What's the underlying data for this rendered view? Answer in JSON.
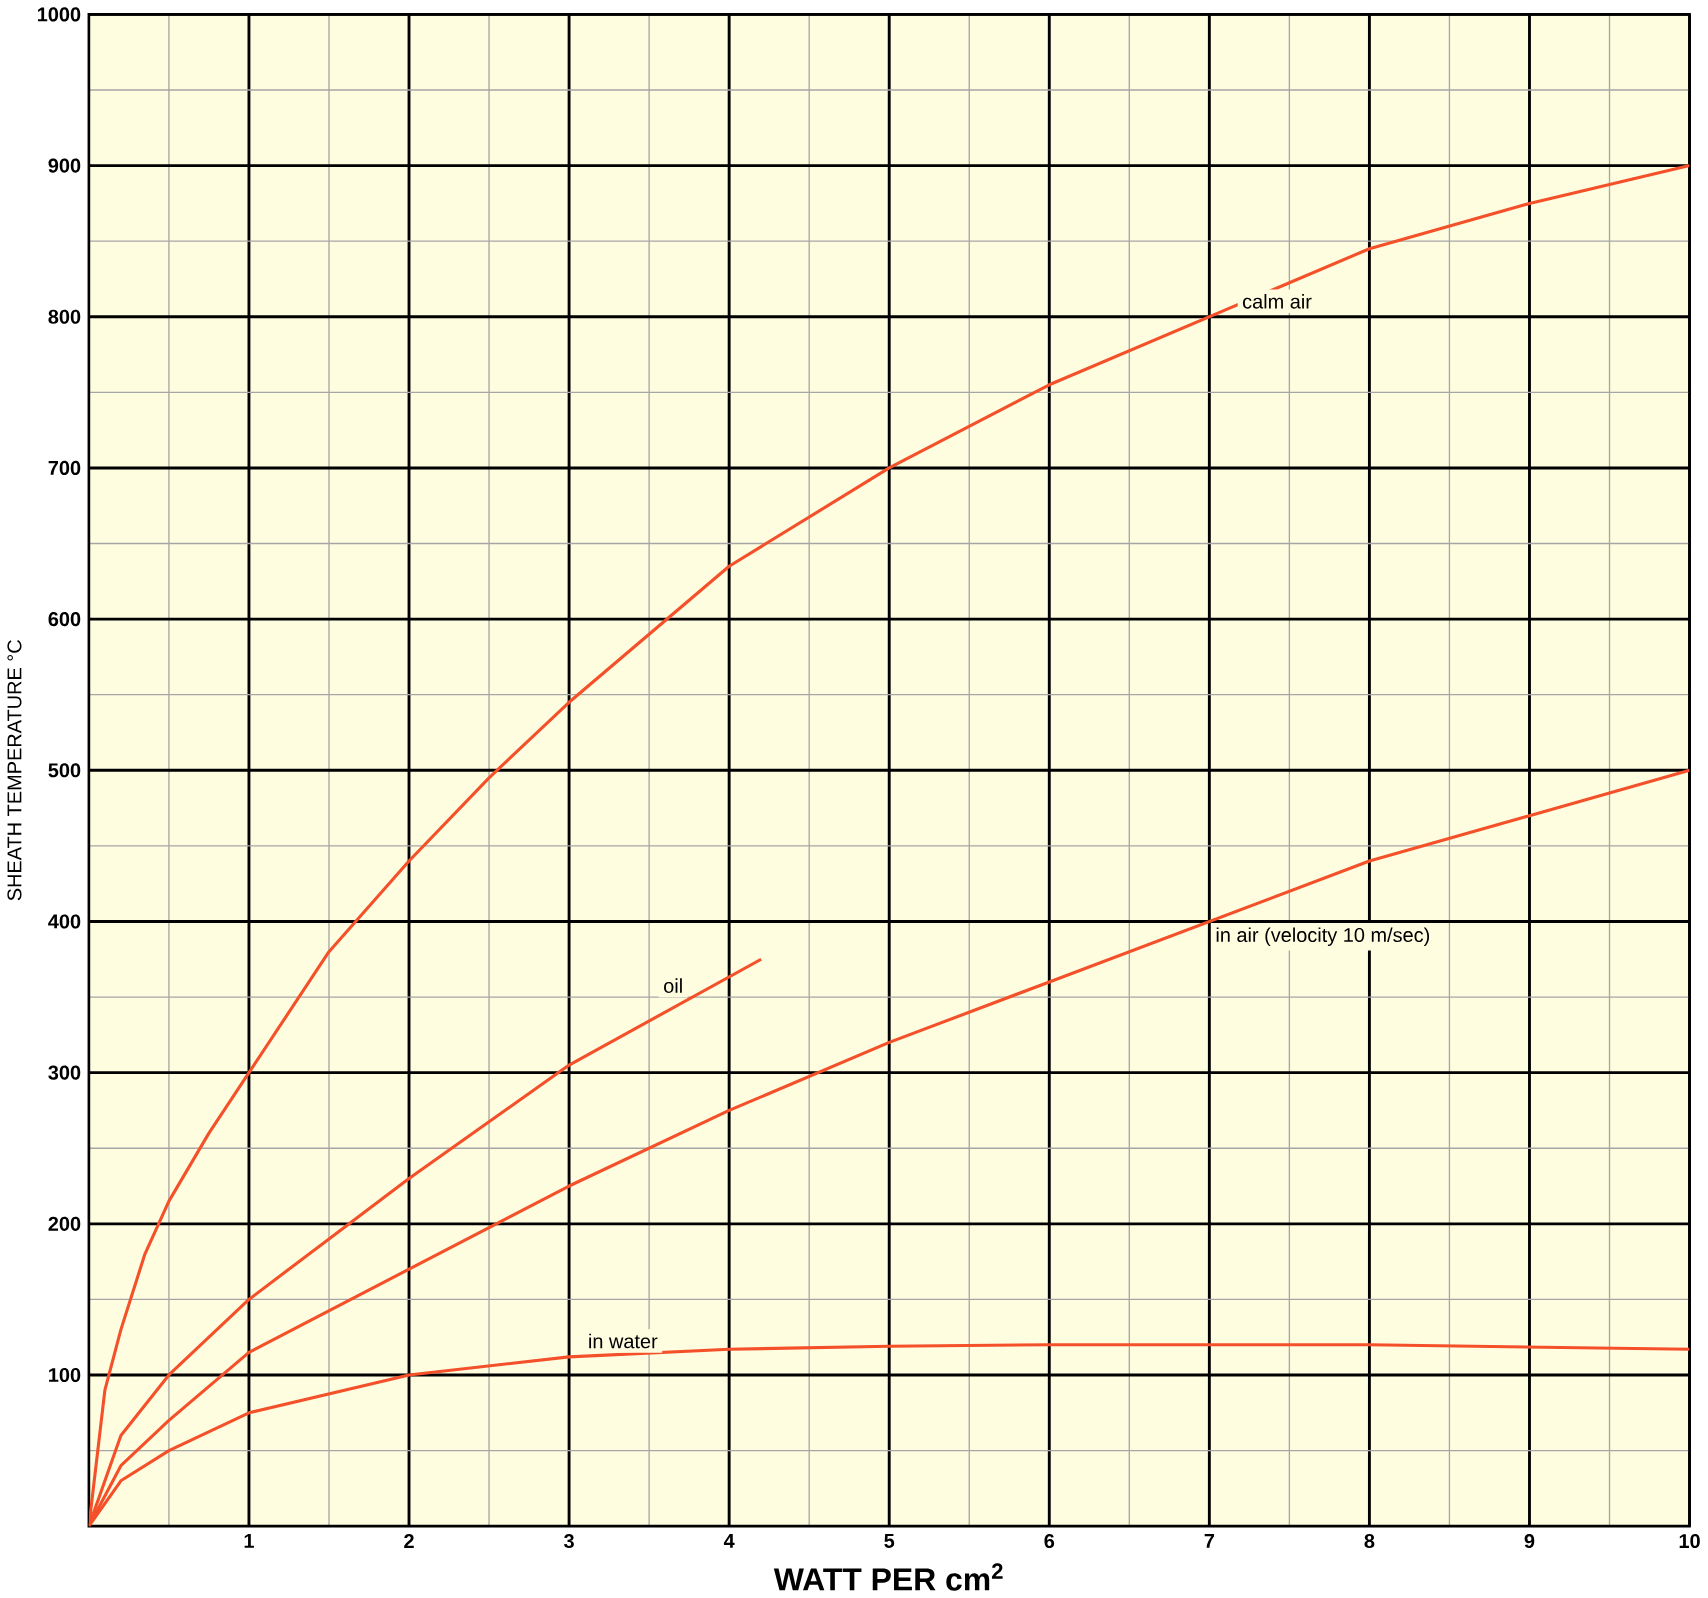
{
  "chart_data": {
    "type": "line",
    "xlabel": "WATT PER cm$^{2}$",
    "ylabel": "SHEATH TEMPERATURE °C",
    "xlim": [
      0,
      10
    ],
    "ylim": [
      0,
      1000
    ],
    "xticks": [
      1,
      2,
      3,
      4,
      5,
      6,
      7,
      8,
      9,
      10
    ],
    "yticks": [
      100,
      200,
      300,
      400,
      500,
      600,
      700,
      800,
      900,
      1000
    ],
    "grid": true,
    "marker": "none",
    "line_style": "solid",
    "series": [
      {
        "name": "calm  air",
        "color": "#f4502a",
        "x": [
          0,
          0.1,
          0.2,
          0.35,
          0.5,
          0.75,
          1,
          1.5,
          2,
          2.5,
          3,
          4,
          5,
          6,
          7,
          8,
          9,
          10
        ],
        "values": [
          0,
          90,
          130,
          180,
          215,
          260,
          300,
          380,
          440,
          495,
          545,
          635,
          700,
          755,
          800,
          845,
          875,
          900
        ]
      },
      {
        "name": "oil",
        "color": "#f4502a",
        "x": [
          0,
          0.2,
          0.5,
          1,
          1.5,
          2,
          3,
          4.2
        ],
        "values": [
          0,
          60,
          100,
          150,
          190,
          230,
          305,
          375
        ]
      },
      {
        "name": "in air (velocity 10 m/sec)",
        "color": "#f4502a",
        "x": [
          0,
          0.2,
          0.5,
          1,
          2,
          3,
          4,
          5,
          6,
          7,
          8,
          9,
          10
        ],
        "values": [
          0,
          40,
          70,
          115,
          170,
          225,
          275,
          320,
          360,
          400,
          440,
          470,
          500
        ]
      },
      {
        "name": "in water",
        "color": "#f4502a",
        "x": [
          0,
          0.2,
          0.5,
          1,
          2,
          3,
          4,
          5,
          6,
          8,
          10
        ],
        "values": [
          0,
          30,
          50,
          75,
          100,
          112,
          117,
          119,
          120,
          120,
          117
        ]
      }
    ]
  }
}
